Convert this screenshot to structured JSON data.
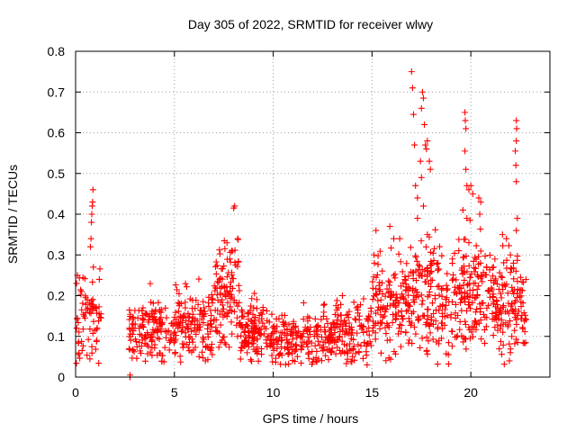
{
  "chart_data": {
    "type": "scatter",
    "title": "Day 305 of 2022, SRMTID for receiver wlwy",
    "xlabel": "GPS time / hours",
    "ylabel": "SRMTID / TECUs",
    "xlim": [
      0,
      24
    ],
    "ylim": [
      0,
      0.8
    ],
    "xticks": [
      0,
      5,
      10,
      15,
      20
    ],
    "xtick_labels": [
      "0",
      "5",
      "10",
      "15",
      "20"
    ],
    "yticks": [
      0,
      0.1,
      0.2,
      0.3,
      0.4,
      0.5,
      0.6,
      0.7,
      0.8
    ],
    "ytick_labels": [
      "0",
      "0.1",
      "0.2",
      "0.3",
      "0.4",
      "0.5",
      "0.6",
      "0.7",
      "0.8"
    ],
    "grid": true,
    "marker": "+",
    "color": "#ff0000",
    "series": [
      {
        "name": "wlwy",
        "segments": [
          {
            "x_range": [
              0.0,
              1.3
            ],
            "base": 0.14,
            "spread": 0.06,
            "n": 70
          },
          {
            "x_range": [
              2.7,
              5.0
            ],
            "base": 0.11,
            "spread": 0.04,
            "n": 150
          },
          {
            "x_range": [
              5.0,
              7.0
            ],
            "base": 0.13,
            "spread": 0.05,
            "n": 140
          },
          {
            "x_range": [
              7.0,
              8.3
            ],
            "base": 0.21,
            "spread": 0.06,
            "n": 110
          },
          {
            "x_range": [
              8.3,
              10.0
            ],
            "base": 0.11,
            "spread": 0.04,
            "n": 130
          },
          {
            "x_range": [
              10.0,
              13.0
            ],
            "base": 0.09,
            "spread": 0.035,
            "n": 190
          },
          {
            "x_range": [
              13.0,
              15.0
            ],
            "base": 0.11,
            "spread": 0.04,
            "n": 120
          },
          {
            "x_range": [
              15.0,
              17.0
            ],
            "base": 0.18,
            "spread": 0.06,
            "n": 150
          },
          {
            "x_range": [
              17.0,
              19.3
            ],
            "base": 0.19,
            "spread": 0.07,
            "n": 170
          },
          {
            "x_range": [
              19.3,
              21.2
            ],
            "base": 0.21,
            "spread": 0.07,
            "n": 150
          },
          {
            "x_range": [
              21.2,
              22.8
            ],
            "base": 0.18,
            "spread": 0.06,
            "n": 130
          }
        ],
        "highlights": [
          {
            "x": 0.05,
            "y": 0.23
          },
          {
            "x": 0.3,
            "y": 0.21
          },
          {
            "x": 0.6,
            "y": 0.19
          },
          {
            "x": 0.75,
            "y": 0.32
          },
          {
            "x": 0.78,
            "y": 0.34
          },
          {
            "x": 0.8,
            "y": 0.38
          },
          {
            "x": 0.82,
            "y": 0.4
          },
          {
            "x": 0.84,
            "y": 0.42
          },
          {
            "x": 0.86,
            "y": 0.43
          },
          {
            "x": 0.88,
            "y": 0.46
          },
          {
            "x": 0.9,
            "y": 0.27
          },
          {
            "x": 1.2,
            "y": 0.24
          },
          {
            "x": 2.75,
            "y": 0.0
          },
          {
            "x": 2.76,
            "y": 0.005
          },
          {
            "x": 7.8,
            "y": 0.29
          },
          {
            "x": 7.9,
            "y": 0.31
          },
          {
            "x": 8.0,
            "y": 0.415
          },
          {
            "x": 8.05,
            "y": 0.42
          },
          {
            "x": 8.2,
            "y": 0.34
          },
          {
            "x": 15.1,
            "y": 0.3
          },
          {
            "x": 15.2,
            "y": 0.36
          },
          {
            "x": 15.9,
            "y": 0.37
          },
          {
            "x": 16.1,
            "y": 0.34
          },
          {
            "x": 16.4,
            "y": 0.34
          },
          {
            "x": 17.0,
            "y": 0.75
          },
          {
            "x": 17.05,
            "y": 0.71
          },
          {
            "x": 17.1,
            "y": 0.645
          },
          {
            "x": 17.15,
            "y": 0.57
          },
          {
            "x": 17.2,
            "y": 0.47
          },
          {
            "x": 17.3,
            "y": 0.44
          },
          {
            "x": 17.45,
            "y": 0.53
          },
          {
            "x": 17.5,
            "y": 0.66
          },
          {
            "x": 17.55,
            "y": 0.7
          },
          {
            "x": 17.6,
            "y": 0.685
          },
          {
            "x": 17.65,
            "y": 0.62
          },
          {
            "x": 17.7,
            "y": 0.57
          },
          {
            "x": 17.75,
            "y": 0.56
          },
          {
            "x": 17.8,
            "y": 0.58
          },
          {
            "x": 17.9,
            "y": 0.53
          },
          {
            "x": 17.95,
            "y": 0.51
          },
          {
            "x": 17.5,
            "y": 0.49
          },
          {
            "x": 17.6,
            "y": 0.42
          },
          {
            "x": 17.3,
            "y": 0.39
          },
          {
            "x": 17.8,
            "y": 0.35
          },
          {
            "x": 19.7,
            "y": 0.65
          },
          {
            "x": 19.72,
            "y": 0.63
          },
          {
            "x": 19.75,
            "y": 0.61
          },
          {
            "x": 19.7,
            "y": 0.555
          },
          {
            "x": 19.75,
            "y": 0.51
          },
          {
            "x": 19.8,
            "y": 0.47
          },
          {
            "x": 19.9,
            "y": 0.46
          },
          {
            "x": 20.0,
            "y": 0.47
          },
          {
            "x": 20.1,
            "y": 0.45
          },
          {
            "x": 19.6,
            "y": 0.41
          },
          {
            "x": 19.8,
            "y": 0.39
          },
          {
            "x": 20.4,
            "y": 0.44
          },
          {
            "x": 20.5,
            "y": 0.43
          },
          {
            "x": 20.45,
            "y": 0.4
          },
          {
            "x": 19.9,
            "y": 0.33
          },
          {
            "x": 22.3,
            "y": 0.63
          },
          {
            "x": 22.32,
            "y": 0.61
          },
          {
            "x": 22.3,
            "y": 0.58
          },
          {
            "x": 22.25,
            "y": 0.555
          },
          {
            "x": 22.28,
            "y": 0.52
          },
          {
            "x": 22.3,
            "y": 0.48
          },
          {
            "x": 22.35,
            "y": 0.39
          },
          {
            "x": 22.3,
            "y": 0.36
          },
          {
            "x": 21.6,
            "y": 0.35
          },
          {
            "x": 21.8,
            "y": 0.34
          },
          {
            "x": 22.0,
            "y": 0.3
          },
          {
            "x": 22.0,
            "y": 0.06
          },
          {
            "x": 21.95,
            "y": 0.04
          },
          {
            "x": 14.75,
            "y": 0.03
          },
          {
            "x": 13.5,
            "y": 0.2
          }
        ]
      }
    ]
  }
}
